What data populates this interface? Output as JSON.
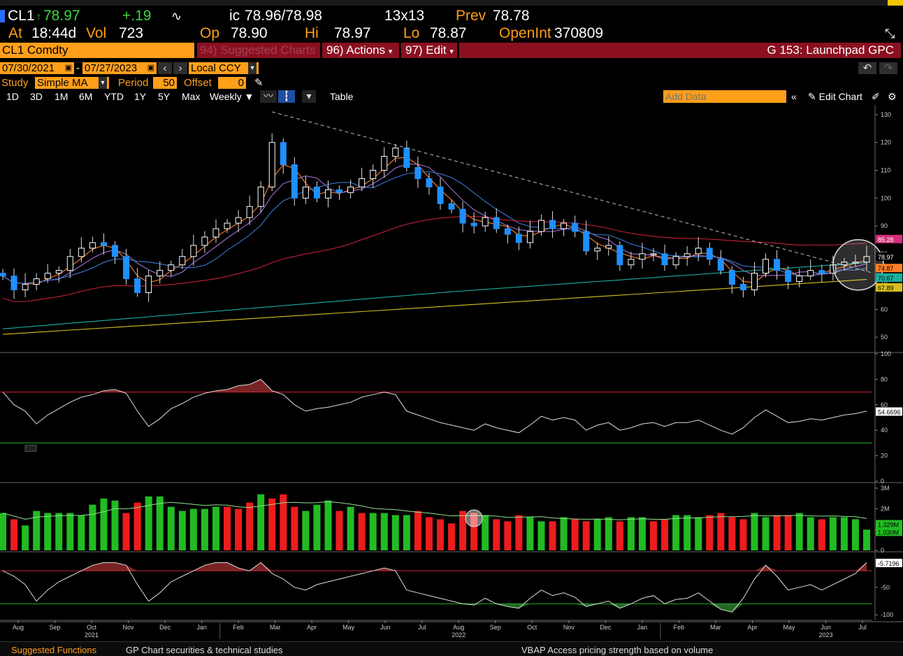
{
  "quote": {
    "ticker": "CL1",
    "last": "78.97",
    "change": "+.19",
    "bid_ask_label": "ic",
    "bid_ask": "78.96/78.98",
    "size": "13x13",
    "prev_label": "Prev",
    "prev": "78.78",
    "at_label": "At",
    "time": "18:44d",
    "vol_label": "Vol",
    "vol": "723",
    "op_label": "Op",
    "open": "78.90",
    "hi_label": "Hi",
    "high": "78.97",
    "lo_label": "Lo",
    "low": "78.87",
    "oi_label": "OpenInt",
    "open_interest": "370809"
  },
  "toolbar": {
    "security": "CL1 Comdty",
    "suggested": "94) Suggested Charts",
    "actions": "96) Actions",
    "edit": "97) Edit",
    "launchpad": "G 153: Launchpad GPC"
  },
  "range": {
    "start": "07/30/2021",
    "end": "07/27/2023",
    "currency": "Local CCY"
  },
  "study": {
    "label": "Study",
    "type": "Simple MA",
    "period_label": "Period",
    "period": "50",
    "offset_label": "Offset",
    "offset": "0"
  },
  "periods": [
    "1D",
    "3D",
    "1M",
    "6M",
    "YTD",
    "1Y",
    "5Y",
    "Max"
  ],
  "frequency": "Weekly",
  "table_label": "Table",
  "add_data_placeholder": "Add Data",
  "edit_chart": "Edit Chart",
  "colors": {
    "up": "#ffffff",
    "down": "#1e90ff",
    "ma_orange": "#ff7f27",
    "ma_purple": "#a070d0",
    "ma_blue": "#3a78d0",
    "ma_red": "#c0203a",
    "ma_teal": "#1ab0a0",
    "ma_yellow": "#d8c020",
    "vol_up": "#22bb22",
    "vol_down": "#ee1c1c",
    "upper_band": "#cc2233",
    "lower_band": "#22aa22"
  },
  "chart_data": {
    "type": "candlestick",
    "frequency": "weekly",
    "x": [
      "Aug 2021",
      "Sep",
      "Oct",
      "Nov",
      "Dec",
      "Jan 2022",
      "Feb",
      "Mar",
      "Apr",
      "May",
      "Jun",
      "Jul",
      "Aug",
      "Sep",
      "Oct",
      "Nov",
      "Dec",
      "Jan 2023",
      "Feb",
      "Mar",
      "Apr",
      "May",
      "Jun",
      "Jul"
    ],
    "x_axis_months": [
      "Aug",
      "Sep",
      "Oct",
      "Nov",
      "Dec",
      "Jan",
      "Feb",
      "Mar",
      "Apr",
      "May",
      "Jun",
      "Jul",
      "Aug",
      "Sep",
      "Oct",
      "Nov",
      "Dec",
      "Jan",
      "Feb",
      "Mar",
      "Apr",
      "May",
      "Jun",
      "Jul"
    ],
    "x_axis_years": [
      "2021",
      "2022",
      "2023"
    ],
    "price_panel": {
      "ylim": [
        45,
        132
      ],
      "yticks": [
        "130",
        "120",
        "110",
        "100",
        "90",
        "80",
        "70",
        "60",
        "50"
      ],
      "close": [
        72,
        67,
        69,
        71,
        73,
        74,
        79,
        82,
        84,
        83,
        79,
        71,
        66,
        72,
        74,
        76,
        79,
        83,
        86,
        89,
        91,
        93,
        97,
        104,
        120,
        112,
        100,
        104,
        100,
        103,
        102,
        104,
        107,
        110,
        115,
        118,
        111,
        107,
        104,
        98,
        96,
        91,
        90,
        93,
        89,
        87,
        84,
        88,
        92,
        89,
        91,
        88,
        81,
        82,
        83,
        76,
        78,
        80,
        80,
        76,
        79,
        80,
        82,
        78,
        74,
        69,
        67,
        73,
        78,
        74,
        70,
        72,
        74,
        73,
        76,
        77,
        77,
        79
      ],
      "last_label": "78.97",
      "ma_labels": [
        "85.28",
        "74.87",
        "70.67",
        "67.89"
      ],
      "trendline": {
        "from_price": 131,
        "to_price": 73
      }
    },
    "rsi_panel": {
      "ylim": [
        0,
        100
      ],
      "yticks": [
        "100",
        "80",
        "60",
        "40",
        "20",
        "0"
      ],
      "upper": 70,
      "lower": 30,
      "values": [
        70,
        60,
        55,
        45,
        52,
        57,
        62,
        66,
        68,
        71,
        72,
        69,
        55,
        43,
        49,
        57,
        61,
        66,
        69,
        71,
        72,
        75,
        76,
        80,
        71,
        68,
        60,
        55,
        57,
        58,
        60,
        62,
        66,
        68,
        70,
        68,
        55,
        52,
        49,
        46,
        44,
        42,
        40,
        45,
        42,
        40,
        38,
        44,
        51,
        48,
        50,
        48,
        40,
        44,
        46,
        40,
        42,
        45,
        46,
        43,
        46,
        46,
        48,
        44,
        40,
        37,
        42,
        50,
        56,
        51,
        46,
        47,
        49,
        48,
        50,
        52,
        53,
        55
      ],
      "last_label": "54.6696"
    },
    "volume_panel": {
      "ylim": [
        0,
        3200000
      ],
      "yticks": [
        "3M",
        "2M",
        "1M",
        "0"
      ],
      "values_m": [
        1.8,
        1.5,
        1.2,
        1.9,
        1.8,
        1.8,
        1.8,
        1.7,
        2.2,
        2.5,
        2.4,
        1.8,
        2.3,
        2.6,
        2.6,
        2.1,
        1.9,
        2.0,
        2.0,
        2.1,
        2.1,
        2.0,
        2.3,
        2.7,
        2.5,
        2.7,
        2.1,
        1.9,
        2.2,
        2.4,
        1.9,
        2.1,
        1.8,
        1.8,
        1.8,
        1.7,
        1.7,
        1.9,
        1.6,
        1.5,
        1.3,
        1.9,
        1.8,
        1.7,
        1.5,
        1.4,
        1.7,
        1.6,
        1.4,
        1.4,
        1.6,
        1.5,
        1.4,
        1.5,
        1.6,
        1.4,
        1.6,
        1.6,
        1.4,
        1.5,
        1.7,
        1.7,
        1.6,
        1.7,
        1.8,
        1.6,
        1.5,
        1.8,
        1.6,
        1.7,
        1.7,
        1.8,
        1.6,
        1.5,
        1.6,
        1.6,
        1.5,
        1.0
      ],
      "up": [
        true,
        false,
        true,
        true,
        true,
        true,
        true,
        true,
        true,
        true,
        true,
        false,
        false,
        true,
        true,
        true,
        true,
        true,
        true,
        true,
        false,
        false,
        false,
        true,
        false,
        false,
        false,
        true,
        true,
        true,
        false,
        true,
        false,
        true,
        true,
        true,
        true,
        false,
        false,
        false,
        false,
        false,
        false,
        true,
        false,
        false,
        false,
        true,
        true,
        false,
        true,
        false,
        false,
        true,
        true,
        false,
        true,
        true,
        false,
        false,
        true,
        true,
        true,
        false,
        false,
        false,
        false,
        true,
        true,
        false,
        false,
        true,
        true,
        false,
        true,
        true,
        true,
        true
      ],
      "labels": [
        "1.329M",
        "1.030M"
      ]
    },
    "oscillator_panel": {
      "ylim": [
        -110,
        12
      ],
      "yticks": [
        "-50",
        "-100"
      ],
      "upper": -20,
      "lower": -80,
      "values": [
        -20,
        -30,
        -45,
        -75,
        -55,
        -40,
        -30,
        -20,
        -10,
        -5,
        -5,
        -10,
        -45,
        -75,
        -60,
        -40,
        -30,
        -20,
        -10,
        -5,
        -5,
        -15,
        -20,
        -5,
        -25,
        -35,
        -50,
        -55,
        -45,
        -40,
        -35,
        -30,
        -25,
        -20,
        -15,
        -20,
        -55,
        -60,
        -65,
        -70,
        -75,
        -80,
        -82,
        -70,
        -80,
        -85,
        -88,
        -70,
        -55,
        -65,
        -60,
        -68,
        -85,
        -80,
        -75,
        -88,
        -80,
        -70,
        -65,
        -80,
        -72,
        -70,
        -60,
        -75,
        -90,
        -95,
        -70,
        -35,
        -10,
        -30,
        -55,
        -50,
        -45,
        -55,
        -45,
        -35,
        -25,
        -5
      ],
      "last_label": "-5.7196"
    }
  },
  "footer": {
    "suggested": "Suggested Functions",
    "gp": "GP  Chart securities & technical studies",
    "vbap": "VBAP  Access pricing strength based on volume"
  }
}
